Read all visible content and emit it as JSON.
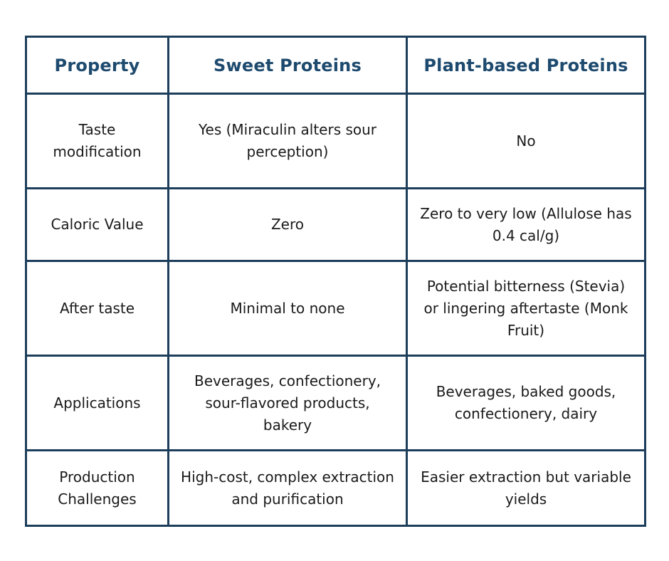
{
  "table": {
    "headers": [
      "Property",
      "Sweet Proteins",
      "Plant-based Proteins"
    ],
    "rows": [
      {
        "property": "Taste modification",
        "sweet": "Yes (Miraculin alters sour perception)",
        "plant": "No"
      },
      {
        "property": "Caloric Value",
        "sweet": "Zero",
        "plant": "Zero to very low (Allulose has 0.4 cal/g)"
      },
      {
        "property": "After taste",
        "sweet": "Minimal to none",
        "plant": "Potential bitterness (Stevia) or lingering aftertaste (Monk Fruit)"
      },
      {
        "property": "Applications",
        "sweet": "Beverages, confectionery, sour-flavored products, bakery",
        "plant": "Beverages, baked goods, confectionery, dairy"
      },
      {
        "property": "Production Challenges",
        "sweet": "High-cost, complex extraction and purification",
        "plant": "Easier extraction but variable yields"
      }
    ]
  },
  "colors": {
    "border": "#1d3e5b",
    "header_text": "#1d4a6e",
    "body_text": "#1a1a1a",
    "background": "#ffffff"
  }
}
